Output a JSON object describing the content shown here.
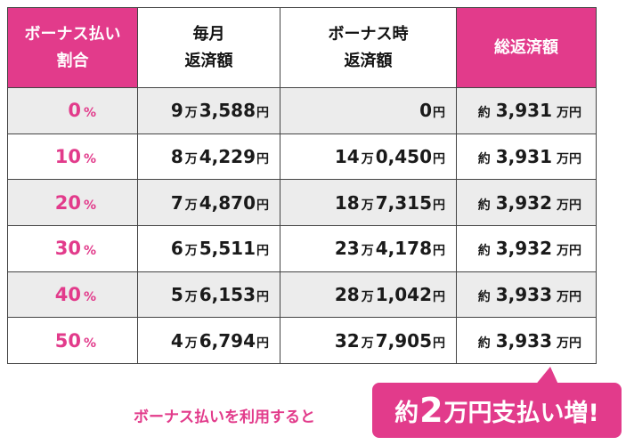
{
  "headers": {
    "ratio": [
      "ボーナス払い",
      "割合"
    ],
    "monthly": [
      "毎月",
      "返済額"
    ],
    "bonus": [
      "ボーナス時",
      "返済額"
    ],
    "total": "総返済額"
  },
  "units": {
    "man": "万",
    "yen": "円",
    "approx": "約",
    "man_yen": "万円",
    "percent": "%"
  },
  "rows": [
    {
      "ratio": "0",
      "monthly_man": "9",
      "monthly_rest": "3,588",
      "bonus_man": "",
      "bonus_rest": "0",
      "total": "3,931"
    },
    {
      "ratio": "10",
      "monthly_man": "8",
      "monthly_rest": "4,229",
      "bonus_man": "14",
      "bonus_rest": "0,450",
      "total": "3,931"
    },
    {
      "ratio": "20",
      "monthly_man": "7",
      "monthly_rest": "4,870",
      "bonus_man": "18",
      "bonus_rest": "7,315",
      "total": "3,932"
    },
    {
      "ratio": "30",
      "monthly_man": "6",
      "monthly_rest": "5,511",
      "bonus_man": "23",
      "bonus_rest": "4,178",
      "total": "3,932"
    },
    {
      "ratio": "40",
      "monthly_man": "5",
      "monthly_rest": "6,153",
      "bonus_man": "28",
      "bonus_rest": "1,042",
      "total": "3,933"
    },
    {
      "ratio": "50",
      "monthly_man": "4",
      "monthly_rest": "6,794",
      "bonus_man": "32",
      "bonus_rest": "7,905",
      "total": "3,933"
    }
  ],
  "footer": {
    "note": "ボーナス払いを利用すると",
    "callout_prefix": "約",
    "callout_number": "2",
    "callout_suffix": "万円支払い増!"
  },
  "colors": {
    "accent": "#e23b8b",
    "row_shade": "#ececec"
  }
}
